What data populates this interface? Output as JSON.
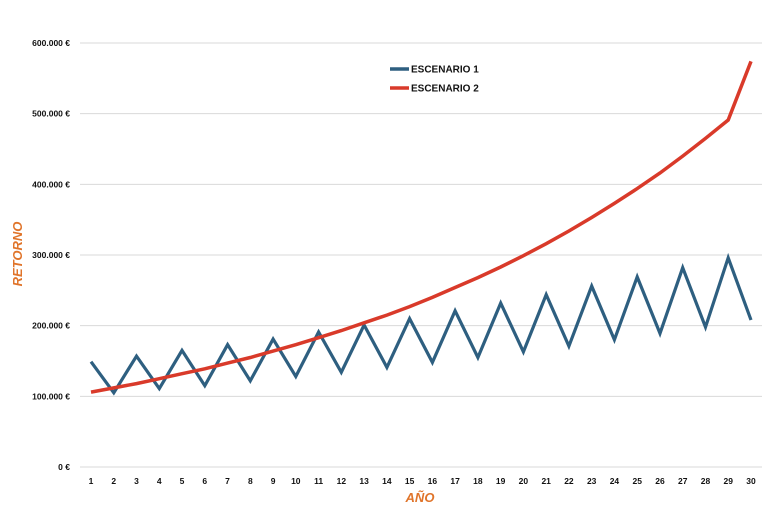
{
  "chart_data": {
    "type": "line",
    "title": "",
    "xlabel": "AÑO",
    "ylabel": "RETORNO",
    "x": [
      1,
      2,
      3,
      4,
      5,
      6,
      7,
      8,
      9,
      10,
      11,
      12,
      13,
      14,
      15,
      16,
      17,
      18,
      19,
      20,
      21,
      22,
      23,
      24,
      25,
      26,
      27,
      28,
      29,
      30
    ],
    "ylim": [
      0,
      600000
    ],
    "yticks": [
      0,
      100000,
      200000,
      300000,
      400000,
      500000,
      600000
    ],
    "ytick_labels": [
      "0 €",
      "100.000 €",
      "200.000 €",
      "300.000 €",
      "400.000 €",
      "500.000 €",
      "600.000 €"
    ],
    "grid": "horizontal",
    "legend_position": "top-center",
    "series": [
      {
        "name": "ESCENARIO 1",
        "color": "#2e5f80",
        "values": [
          149000,
          105000,
          157000,
          111000,
          165000,
          115000,
          173000,
          122000,
          181000,
          128000,
          191000,
          134000,
          201000,
          141000,
          210000,
          148000,
          221000,
          155000,
          232000,
          163000,
          244000,
          171000,
          256000,
          180000,
          269000,
          189000,
          282000,
          198000,
          296000,
          208000
        ]
      },
      {
        "name": "ESCENARIO 2",
        "color": "#d93a2a",
        "values": [
          106000,
          112000,
          118000,
          125000,
          132000,
          139000,
          147000,
          155000,
          164000,
          173000,
          183000,
          193000,
          204000,
          215000,
          227000,
          240000,
          254000,
          268000,
          283000,
          299000,
          316000,
          334000,
          353000,
          373000,
          394000,
          416000,
          440000,
          465000,
          491000,
          574000
        ]
      }
    ]
  },
  "colors": {
    "axis_title": "#e0742a"
  }
}
